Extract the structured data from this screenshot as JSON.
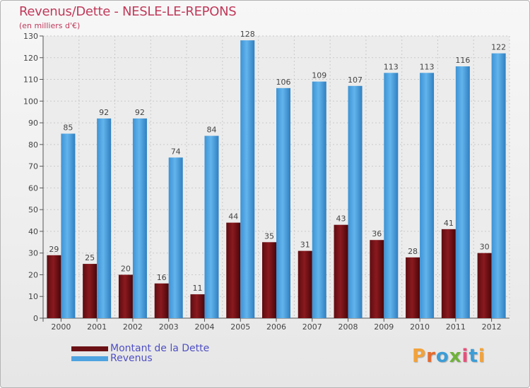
{
  "chart_data": {
    "type": "bar",
    "title": "Revenus/Dette - NESLE-LE-REPONS",
    "subtitle": "(en milliers d'€)",
    "categories": [
      "2000",
      "2001",
      "2002",
      "2003",
      "2004",
      "2005",
      "2006",
      "2007",
      "2008",
      "2009",
      "2010",
      "2011",
      "2012"
    ],
    "series": [
      {
        "name": "Montant de la Dette",
        "color": "#7a1418",
        "values": [
          29,
          25,
          20,
          16,
          11,
          44,
          35,
          31,
          43,
          36,
          28,
          41,
          30
        ]
      },
      {
        "name": "Revenus",
        "color": "#4fa3e0",
        "values": [
          85,
          92,
          92,
          74,
          84,
          128,
          106,
          109,
          107,
          113,
          113,
          116,
          122
        ]
      }
    ],
    "ylim": [
      0,
      130
    ],
    "yticks": [
      0,
      10,
      20,
      30,
      40,
      50,
      60,
      70,
      80,
      90,
      100,
      110,
      120,
      130
    ],
    "grid": true,
    "legend_position": "bottom-left"
  },
  "legend": {
    "items": [
      {
        "label": "Montant de la Dette",
        "color": "#7a1418"
      },
      {
        "label": "Revenus",
        "color": "#4fa3e0"
      }
    ]
  },
  "brand": {
    "letters": [
      "P",
      "r",
      "o",
      "x",
      "i",
      "t",
      "i"
    ],
    "colors": [
      "#f2a23a",
      "#e56b2e",
      "#3c9dd6",
      "#6fb33a",
      "#e94f7a",
      "#3c9dd6",
      "#f2a23a"
    ]
  }
}
